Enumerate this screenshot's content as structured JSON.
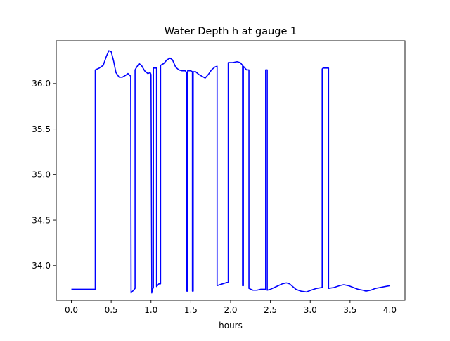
{
  "chart_data": {
    "type": "line",
    "title": "Water Depth h at gauge 1",
    "xlabel": "hours",
    "ylabel": "",
    "xlim": [
      -0.19,
      4.19
    ],
    "ylim": [
      33.62,
      36.47
    ],
    "xticks": [
      0.0,
      0.5,
      1.0,
      1.5,
      2.0,
      2.5,
      3.0,
      3.5,
      4.0
    ],
    "xtick_labels": [
      "0.0",
      "0.5",
      "1.0",
      "1.5",
      "2.0",
      "2.5",
      "3.0",
      "3.5",
      "4.0"
    ],
    "yticks": [
      34.0,
      34.5,
      35.0,
      35.5,
      36.0
    ],
    "ytick_labels": [
      "34.0",
      "34.5",
      "35.0",
      "35.5",
      "36.0"
    ],
    "grid": false,
    "legend": "none",
    "line_color": "#0000ff",
    "series": [
      {
        "x": [
          0.0,
          0.3,
          0.3,
          0.35,
          0.4,
          0.44,
          0.47,
          0.5,
          0.53,
          0.56,
          0.6,
          0.64,
          0.68,
          0.71,
          0.745,
          0.75,
          0.75,
          0.8,
          0.8,
          0.82,
          0.85,
          0.88,
          0.92,
          0.96,
          0.99,
          1.0,
          1.01,
          1.02,
          1.03,
          1.03,
          1.07,
          1.07,
          1.1,
          1.12,
          1.12,
          1.16,
          1.2,
          1.24,
          1.27,
          1.31,
          1.35,
          1.39,
          1.43,
          1.45,
          1.45,
          1.46,
          1.46,
          1.5,
          1.52,
          1.52,
          1.53,
          1.53,
          1.56,
          1.6,
          1.64,
          1.68,
          1.72,
          1.76,
          1.8,
          1.83,
          1.83,
          1.9,
          1.97,
          1.97,
          2.03,
          2.08,
          2.12,
          2.15,
          2.15,
          2.16,
          2.16,
          2.2,
          2.23,
          2.23,
          2.28,
          2.33,
          2.38,
          2.44,
          2.44,
          2.46,
          2.46,
          2.5,
          2.55,
          2.6,
          2.65,
          2.7,
          2.74,
          2.78,
          2.82,
          2.88,
          2.95,
          3.01,
          3.08,
          3.15,
          3.15,
          3.16,
          3.23,
          3.23,
          3.3,
          3.37,
          3.42,
          3.48,
          3.54,
          3.6,
          3.66,
          3.7,
          3.76,
          3.82,
          3.88,
          3.94,
          4.0
        ],
        "y": [
          33.74,
          33.74,
          36.15,
          36.17,
          36.2,
          36.3,
          36.36,
          36.35,
          36.25,
          36.12,
          36.07,
          36.07,
          36.09,
          36.11,
          36.08,
          33.7,
          33.7,
          33.75,
          36.15,
          36.18,
          36.22,
          36.2,
          36.14,
          36.11,
          36.12,
          36.1,
          33.7,
          33.74,
          33.76,
          36.17,
          36.17,
          33.77,
          33.8,
          33.8,
          36.2,
          36.22,
          36.26,
          36.28,
          36.26,
          36.18,
          36.15,
          36.14,
          36.14,
          36.12,
          33.72,
          33.72,
          36.14,
          36.14,
          36.13,
          33.72,
          33.72,
          36.13,
          36.13,
          36.1,
          36.08,
          36.06,
          36.1,
          36.15,
          36.18,
          36.19,
          33.78,
          33.8,
          33.82,
          36.23,
          36.23,
          36.24,
          36.23,
          36.2,
          33.78,
          33.78,
          36.19,
          36.15,
          36.15,
          33.75,
          33.73,
          33.73,
          33.74,
          33.74,
          36.15,
          36.15,
          33.73,
          33.74,
          33.76,
          33.78,
          33.8,
          33.81,
          33.8,
          33.77,
          33.74,
          33.72,
          33.71,
          33.73,
          33.75,
          33.76,
          36.16,
          36.17,
          36.17,
          33.75,
          33.76,
          33.78,
          33.79,
          33.78,
          33.76,
          33.74,
          33.73,
          33.72,
          33.73,
          33.75,
          33.76,
          33.77,
          33.78
        ]
      }
    ]
  }
}
